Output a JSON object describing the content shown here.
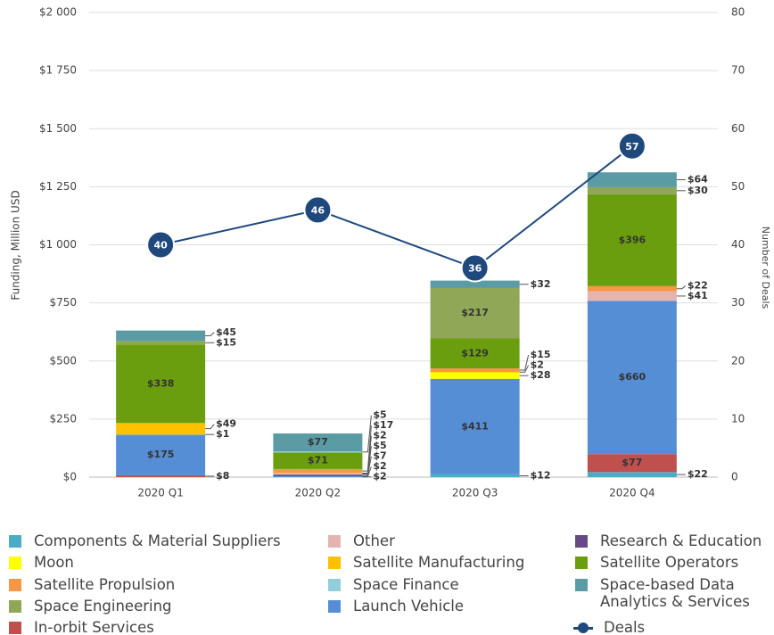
{
  "chart_data": {
    "type": "stacked-bar-line",
    "ylabel": "Funding, Million USD",
    "y2label": "Number of Deals",
    "categories": [
      "2020 Q1",
      "2020 Q2",
      "2020 Q3",
      "2020 Q4"
    ],
    "ylim": [
      0,
      2000
    ],
    "yticks": [
      {
        "value": 0,
        "label": "$0"
      },
      {
        "value": 250,
        "label": "$250"
      },
      {
        "value": 500,
        "label": "$500"
      },
      {
        "value": 750,
        "label": "$750"
      },
      {
        "value": 1000,
        "label": "$1 000"
      },
      {
        "value": 1250,
        "label": "$1 250"
      },
      {
        "value": 1500,
        "label": "$1 500"
      },
      {
        "value": 1750,
        "label": "$1 750"
      },
      {
        "value": 2000,
        "label": "$2 000"
      }
    ],
    "y2lim": [
      0,
      80
    ],
    "y2ticks": [
      0,
      10,
      20,
      30,
      40,
      50,
      60,
      70,
      80
    ],
    "grid": true,
    "series": [
      {
        "name": "Components & Material Suppliers",
        "color": "#4bacc6",
        "values": [
          null,
          2,
          12,
          22
        ],
        "value_labels": [
          null,
          "$2",
          "$12",
          "$22"
        ]
      },
      {
        "name": "Other",
        "color": "#e6b4b0",
        "values": [
          null,
          5,
          null,
          41
        ],
        "value_labels": [
          null,
          "$5",
          null,
          "$41"
        ]
      },
      {
        "name": "Research & Education",
        "color": "#664a86",
        "values": [
          null,
          7,
          null,
          null
        ],
        "value_labels": [
          null,
          "$7",
          null,
          null
        ]
      },
      {
        "name": "Moon",
        "color": "#ffff00",
        "values": [
          1,
          null,
          28,
          null
        ],
        "value_labels": [
          "$1",
          null,
          "$28",
          null
        ]
      },
      {
        "name": "Satellite Manufacturing",
        "color": "#ffc000",
        "values": [
          49,
          2,
          2,
          null
        ],
        "value_labels": [
          "$49",
          "$2",
          "$2",
          null
        ]
      },
      {
        "name": "Satellite Operators",
        "color": "#6a9e0e",
        "values": [
          338,
          71,
          129,
          396
        ],
        "value_labels": [
          "$338",
          "$71",
          "$129",
          "$396"
        ]
      },
      {
        "name": "Satellite Propulsion",
        "color": "#f79646",
        "values": [
          null,
          17,
          15,
          22
        ],
        "value_labels": [
          null,
          "$17",
          "$15",
          "$22"
        ]
      },
      {
        "name": "Space Finance",
        "color": "#92cddc",
        "values": [
          null,
          5,
          null,
          null
        ],
        "value_labels": [
          null,
          "$5",
          null,
          null
        ]
      },
      {
        "name": "Space-based Data Analytics & Services",
        "color": "#5b9ca4",
        "values": [
          45,
          77,
          32,
          64
        ],
        "value_labels": [
          "$45",
          "$77",
          "$32",
          "$64"
        ]
      },
      {
        "name": "Space Engineering",
        "color": "#8fa756",
        "values": [
          15,
          null,
          217,
          30
        ],
        "value_labels": [
          "$15",
          null,
          "$217",
          "$30"
        ]
      },
      {
        "name": "Launch Vehicle",
        "color": "#558ed5",
        "values": [
          175,
          2,
          411,
          660
        ],
        "value_labels": [
          "$175",
          "$2",
          "$411",
          "$660"
        ]
      },
      {
        "name": "In-orbit Services",
        "color": "#c0504d",
        "values": [
          8,
          null,
          null,
          77
        ],
        "value_labels": [
          "$8",
          null,
          null,
          "$77"
        ]
      },
      {
        "name": "Deals",
        "color": "#1f497d",
        "axis": "y2",
        "type": "line",
        "values": [
          40,
          46,
          36,
          57
        ]
      }
    ]
  }
}
